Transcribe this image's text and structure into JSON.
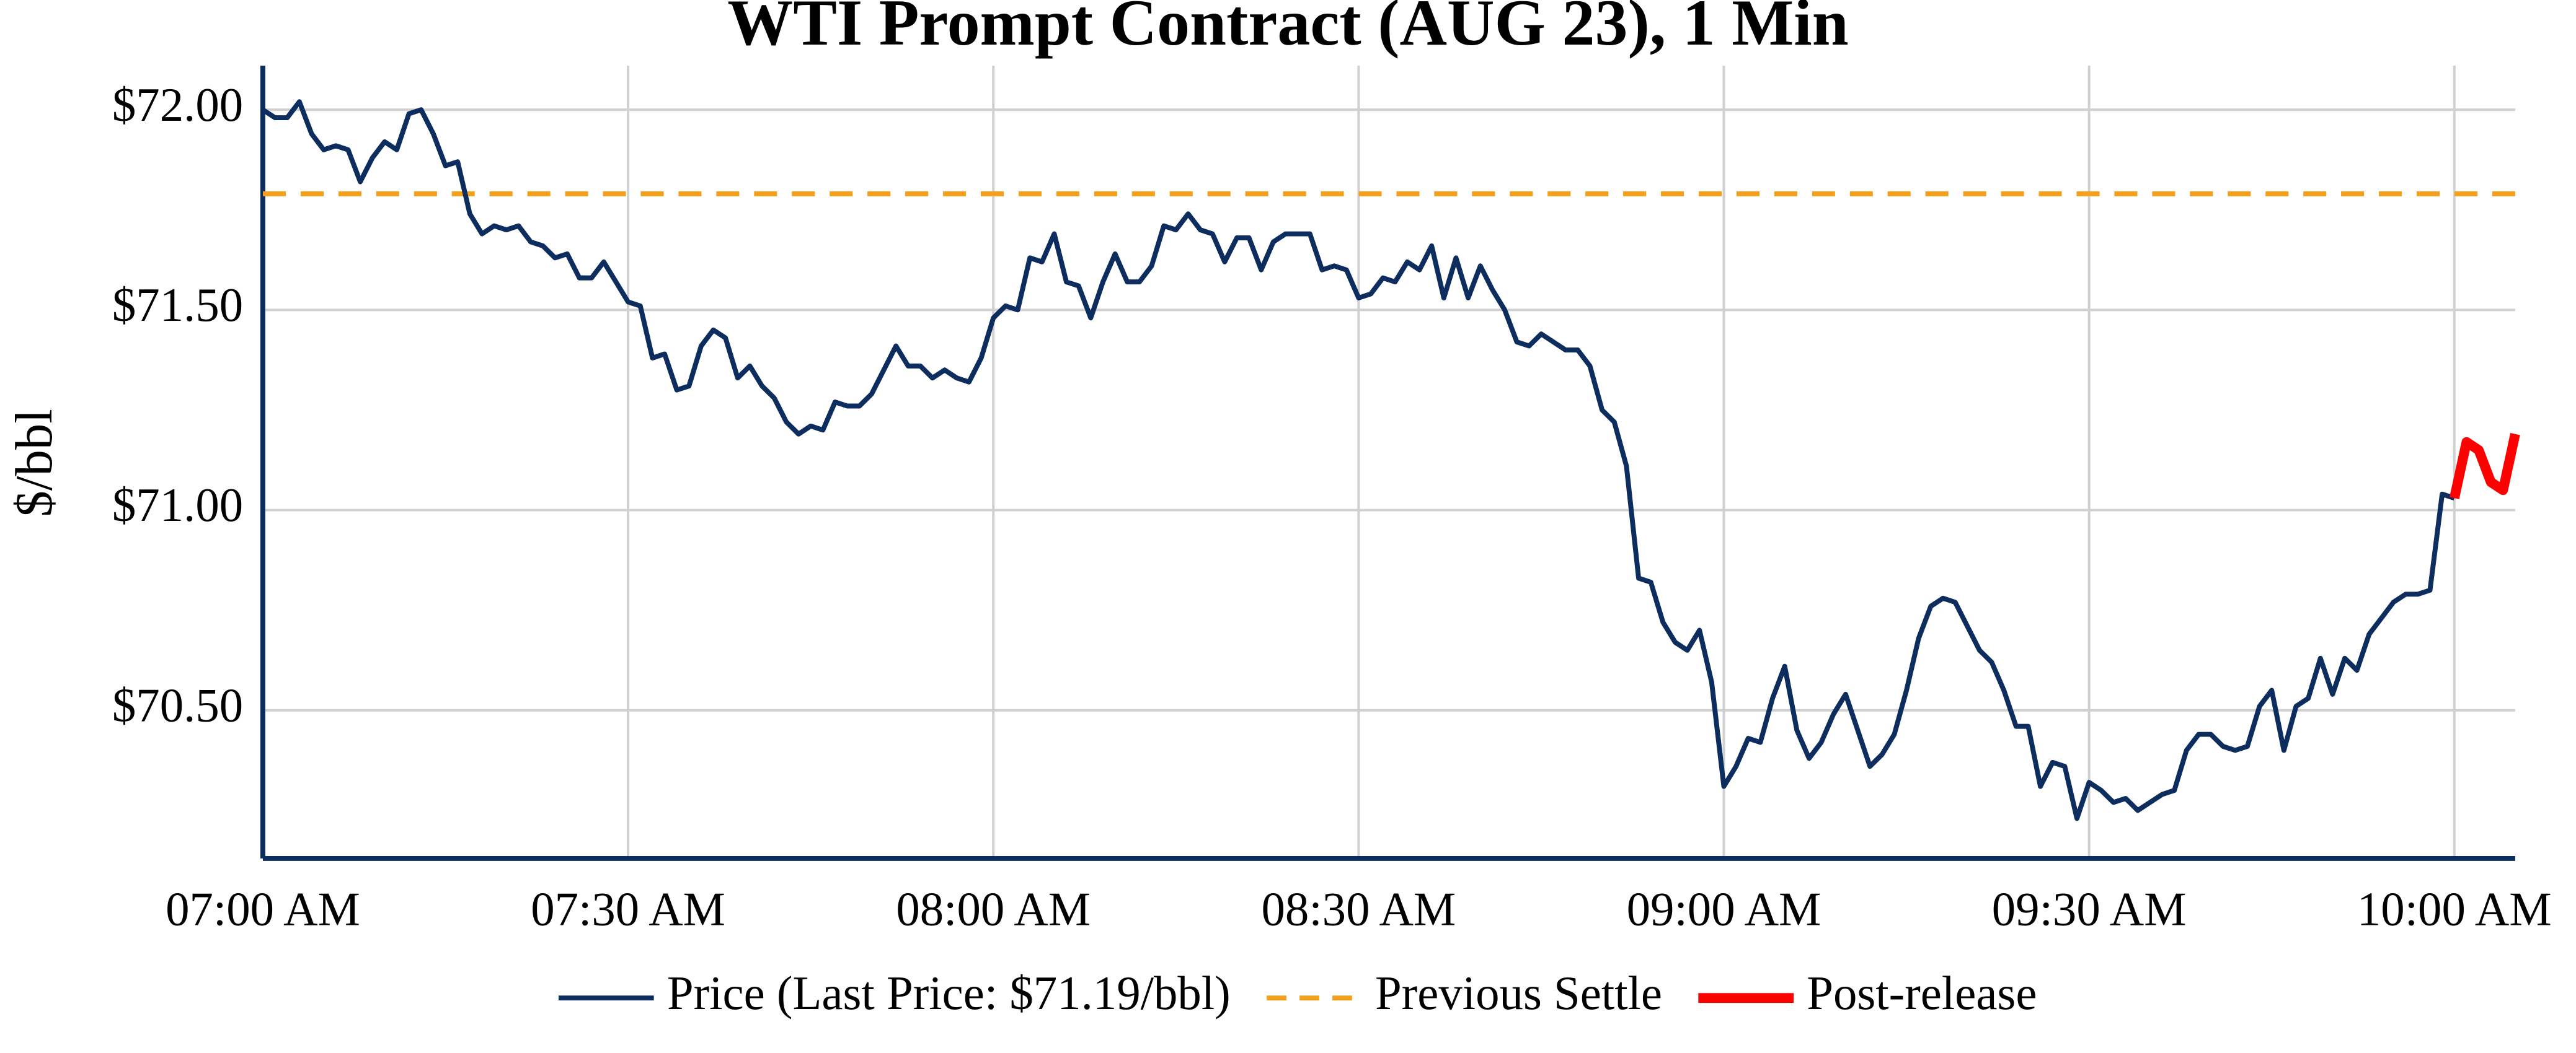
{
  "chart_data": {
    "type": "line",
    "title": "WTI Prompt Contract (AUG 23), 1 Min",
    "y_label": "$/bbl",
    "x": [
      0,
      1,
      2,
      3,
      4,
      5,
      6,
      7,
      8,
      9,
      10,
      11,
      12,
      13,
      14,
      15,
      16,
      17,
      18,
      19,
      20,
      21,
      22,
      23,
      24,
      25,
      26,
      27,
      28,
      29,
      30,
      31,
      32,
      33,
      34,
      35,
      36,
      37,
      38,
      39,
      40,
      41,
      42,
      43,
      44,
      45,
      46,
      47,
      48,
      49,
      50,
      51,
      52,
      53,
      54,
      55,
      56,
      57,
      58,
      59,
      60,
      61,
      62,
      63,
      64,
      65,
      66,
      67,
      68,
      69,
      70,
      71,
      72,
      73,
      74,
      75,
      76,
      77,
      78,
      79,
      80,
      81,
      82,
      83,
      84,
      85,
      86,
      87,
      88,
      89,
      90,
      91,
      92,
      93,
      94,
      95,
      96,
      97,
      98,
      99,
      100,
      101,
      102,
      103,
      104,
      105,
      106,
      107,
      108,
      109,
      110,
      111,
      112,
      113,
      114,
      115,
      116,
      117,
      118,
      119,
      120,
      121,
      122,
      123,
      124,
      125,
      126,
      127,
      128,
      129,
      130,
      131,
      132,
      133,
      134,
      135,
      136,
      137,
      138,
      139,
      140,
      141,
      142,
      143,
      144,
      145,
      146,
      147,
      148,
      149,
      150,
      151,
      152,
      153,
      154,
      155,
      156,
      157,
      158,
      159,
      160,
      161,
      162,
      163,
      164,
      165,
      166,
      167,
      168,
      169,
      170,
      171,
      172,
      173,
      174,
      175,
      176,
      177,
      178,
      179,
      180,
      181,
      182,
      183,
      184,
      185
    ],
    "series": [
      {
        "name": "Price (Last Price: $71.19/bbl)",
        "color": "#0d2d5e",
        "width": 3,
        "values": [
          72.0,
          71.98,
          71.98,
          72.02,
          71.94,
          71.9,
          71.91,
          71.9,
          71.82,
          71.88,
          71.92,
          71.9,
          71.99,
          72.0,
          71.94,
          71.86,
          71.87,
          71.74,
          71.69,
          71.71,
          71.7,
          71.71,
          71.67,
          71.66,
          71.63,
          71.64,
          71.58,
          71.58,
          71.62,
          71.57,
          71.52,
          71.51,
          71.38,
          71.39,
          71.3,
          71.31,
          71.41,
          71.45,
          71.43,
          71.33,
          71.36,
          71.31,
          71.28,
          71.22,
          71.19,
          71.21,
          71.2,
          71.27,
          71.26,
          71.26,
          71.29,
          71.35,
          71.41,
          71.36,
          71.36,
          71.33,
          71.35,
          71.33,
          71.32,
          71.38,
          71.48,
          71.51,
          71.5,
          71.63,
          71.62,
          71.69,
          71.57,
          71.56,
          71.48,
          71.57,
          71.64,
          71.57,
          71.57,
          71.61,
          71.71,
          71.7,
          71.74,
          71.7,
          71.69,
          71.62,
          71.68,
          71.68,
          71.6,
          71.67,
          71.69,
          71.69,
          71.69,
          71.6,
          71.61,
          71.6,
          71.53,
          71.54,
          71.58,
          71.57,
          71.62,
          71.6,
          71.66,
          71.53,
          71.63,
          71.53,
          71.61,
          71.55,
          71.5,
          71.42,
          71.41,
          71.44,
          71.42,
          71.4,
          71.4,
          71.36,
          71.25,
          71.22,
          71.11,
          70.83,
          70.82,
          70.72,
          70.67,
          70.65,
          70.7,
          70.57,
          70.31,
          70.36,
          70.43,
          70.42,
          70.53,
          70.61,
          70.45,
          70.38,
          70.42,
          70.49,
          70.54,
          70.45,
          70.36,
          70.39,
          70.44,
          70.55,
          70.68,
          70.76,
          70.78,
          70.77,
          70.71,
          70.65,
          70.62,
          70.55,
          70.46,
          70.46,
          70.31,
          70.37,
          70.36,
          70.23,
          70.32,
          70.3,
          70.27,
          70.28,
          70.25,
          70.27,
          70.29,
          70.3,
          70.4,
          70.44,
          70.44,
          70.41,
          70.4,
          70.41,
          70.51,
          70.55,
          70.4,
          70.51,
          70.53,
          70.63,
          70.54,
          70.63,
          70.6,
          70.69,
          70.73,
          70.77,
          70.79,
          70.79,
          70.8,
          71.04,
          71.03,
          null,
          null,
          null,
          null,
          null
        ]
      },
      {
        "name": "Post-release",
        "color": "#ff0000",
        "width": 6,
        "values": [
          null,
          null,
          null,
          null,
          null,
          null,
          null,
          null,
          null,
          null,
          null,
          null,
          null,
          null,
          null,
          null,
          null,
          null,
          null,
          null,
          null,
          null,
          null,
          null,
          null,
          null,
          null,
          null,
          null,
          null,
          null,
          null,
          null,
          null,
          null,
          null,
          null,
          null,
          null,
          null,
          null,
          null,
          null,
          null,
          null,
          null,
          null,
          null,
          null,
          null,
          null,
          null,
          null,
          null,
          null,
          null,
          null,
          null,
          null,
          null,
          null,
          null,
          null,
          null,
          null,
          null,
          null,
          null,
          null,
          null,
          null,
          null,
          null,
          null,
          null,
          null,
          null,
          null,
          null,
          null,
          null,
          null,
          null,
          null,
          null,
          null,
          null,
          null,
          null,
          null,
          null,
          null,
          null,
          null,
          null,
          null,
          null,
          null,
          null,
          null,
          null,
          null,
          null,
          null,
          null,
          null,
          null,
          null,
          null,
          null,
          null,
          null,
          null,
          null,
          null,
          null,
          null,
          null,
          null,
          null,
          null,
          null,
          null,
          null,
          null,
          null,
          null,
          null,
          null,
          null,
          null,
          null,
          null,
          null,
          null,
          null,
          null,
          null,
          null,
          null,
          null,
          null,
          null,
          null,
          null,
          null,
          null,
          null,
          null,
          null,
          null,
          null,
          null,
          null,
          null,
          null,
          null,
          null,
          null,
          null,
          null,
          null,
          null,
          null,
          null,
          null,
          null,
          null,
          null,
          null,
          null,
          null,
          null,
          null,
          null,
          null,
          null,
          null,
          null,
          null,
          71.03,
          71.17,
          71.15,
          71.07,
          71.05,
          71.19
        ]
      }
    ],
    "reference_line": {
      "name": "Previous Settle",
      "color": "#f5a01a",
      "value": 71.79
    },
    "xlim": [
      0,
      185
    ],
    "xticks": [
      {
        "value": 0,
        "label": "07:00 AM"
      },
      {
        "value": 30,
        "label": "07:30 AM"
      },
      {
        "value": 60,
        "label": "08:00 AM"
      },
      {
        "value": 90,
        "label": "08:30 AM"
      },
      {
        "value": 120,
        "label": "09:00 AM"
      },
      {
        "value": 150,
        "label": "09:30 AM"
      },
      {
        "value": 180,
        "label": "10:00 AM"
      }
    ],
    "ylim": [
      70.13,
      72.11
    ],
    "yticks": [
      {
        "value": 70.5,
        "label": "$70.50"
      },
      {
        "value": 71,
        "label": "$71.00"
      },
      {
        "value": 71.5,
        "label": "$71.50"
      },
      {
        "value": 72,
        "label": "$72.00"
      }
    ],
    "grid": true
  }
}
